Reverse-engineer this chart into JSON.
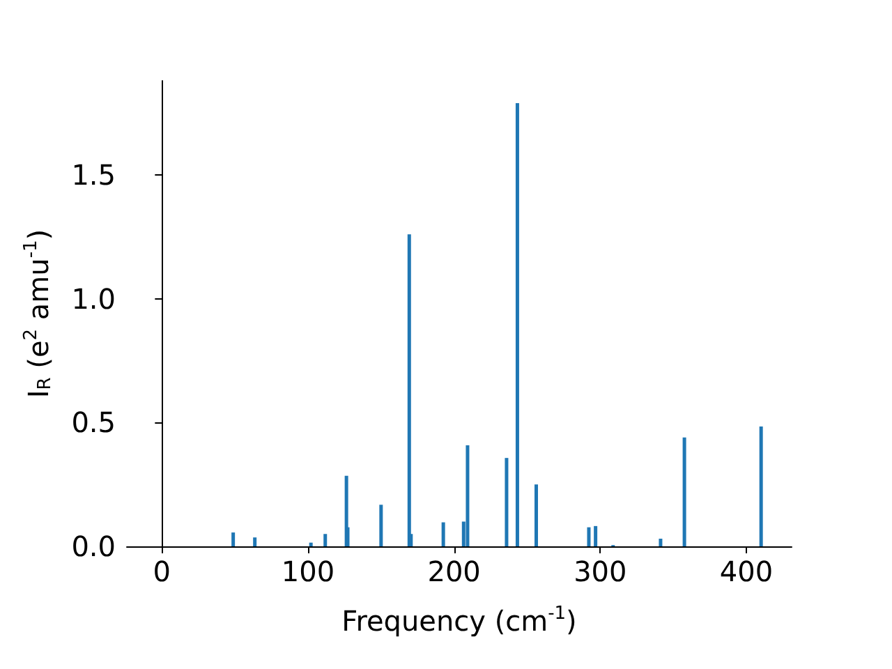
{
  "chart_data": {
    "type": "bar",
    "xlabel": "Frequency (cm$^{-1}$)",
    "ylabel": "I$_{R}$ (e$^{2}$ amu$^{-1}$)",
    "x": [
      48.8,
      63.6,
      102,
      111.8,
      126.3,
      127.2,
      150,
      169.3,
      170.5,
      192.6,
      206.5,
      209.2,
      235.9,
      243.3,
      256.2,
      292.2,
      296.8,
      308.8,
      341.3,
      357.6,
      410.1
    ],
    "values": [
      0.056,
      0.036,
      0.015,
      0.05,
      0.285,
      0.077,
      0.168,
      1.26,
      0.05,
      0.097,
      0.1,
      0.408,
      0.357,
      1.79,
      0.25,
      0.077,
      0.082,
      0.005,
      0.031,
      0.44,
      0.484
    ],
    "color": "#1f77b4",
    "xlim": [
      -24,
      431
    ],
    "xticks": [
      {
        "value": 0,
        "label": "0"
      },
      {
        "value": 100,
        "label": "100"
      },
      {
        "value": 200,
        "label": "200"
      },
      {
        "value": 300,
        "label": "300"
      },
      {
        "value": 400,
        "label": "400"
      }
    ],
    "ylim": [
      0,
      1.88
    ],
    "yticks": [
      {
        "value": 0,
        "label": "0.0"
      },
      {
        "value": 0.5,
        "label": "0.5"
      },
      {
        "value": 1.0,
        "label": "1.0"
      },
      {
        "value": 1.5,
        "label": "1.5"
      }
    ],
    "grid": false
  }
}
